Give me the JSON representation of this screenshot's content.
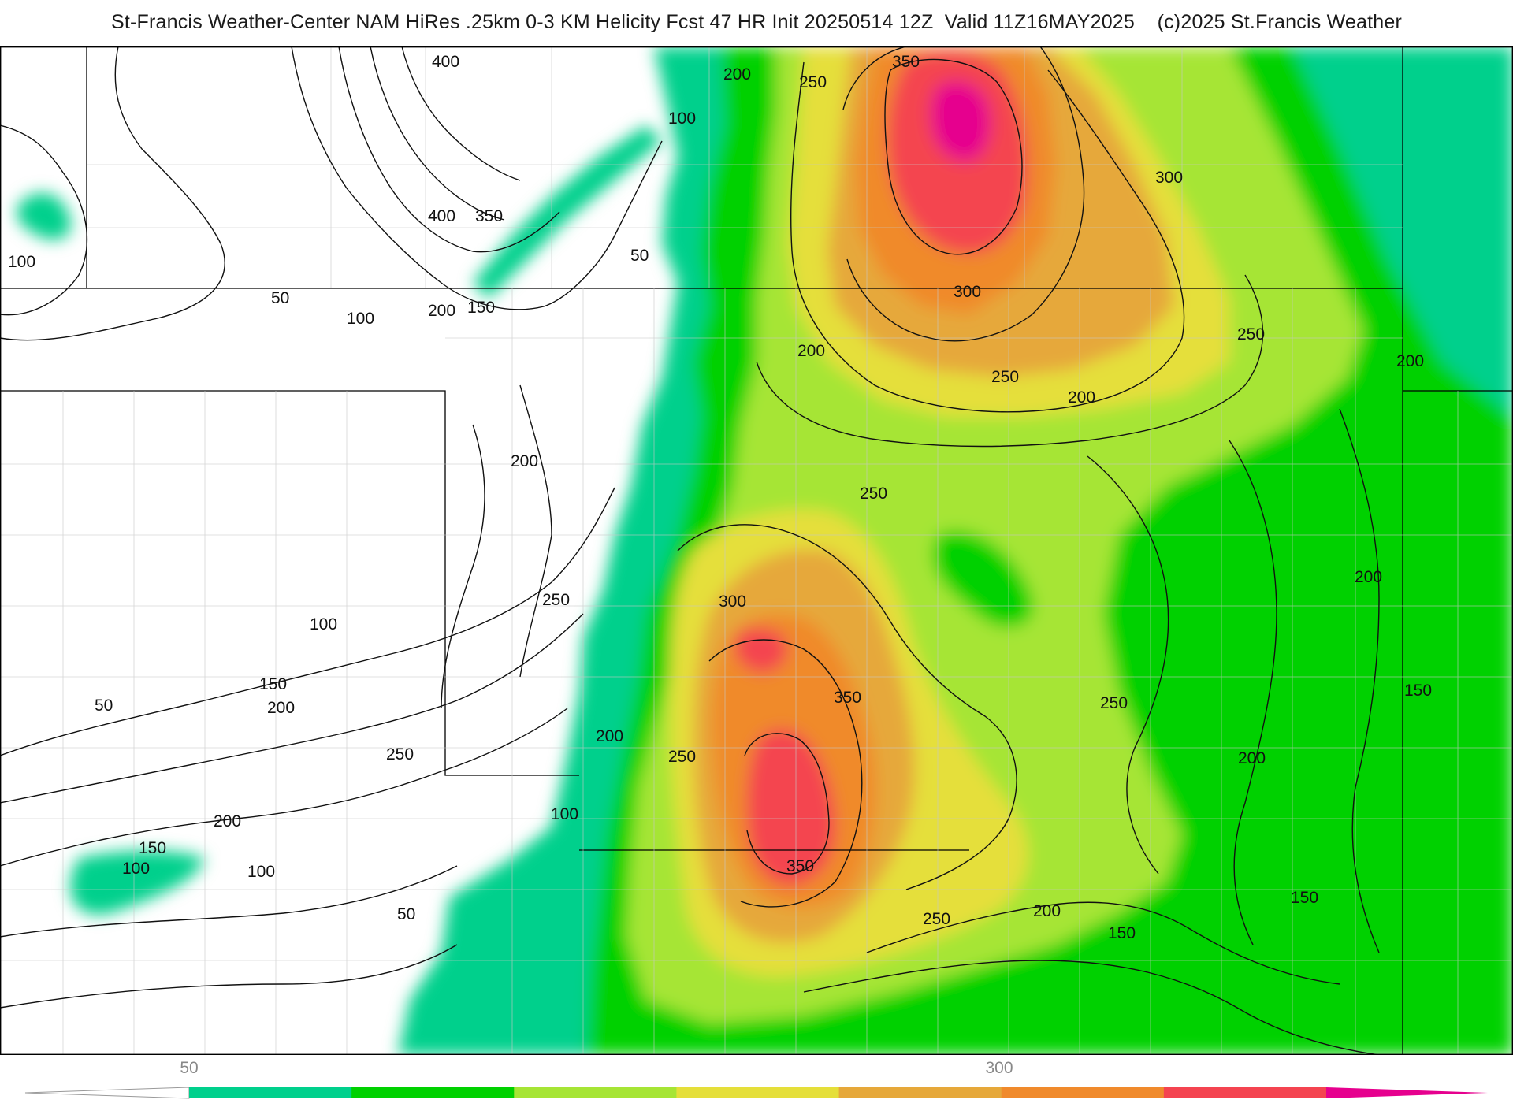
{
  "header": {
    "title": "St-Francis Weather-Center NAM HiRes .25km 0-3 KM Helicity Fcst 47 HR Init 20250514 12Z  Valid 11Z16MAY2025    (c)2025 St.Francis Weather"
  },
  "map": {
    "field": "0-3 KM Helicity",
    "fill_colors": {
      "teal": "#00d08c",
      "green": "#00d100",
      "yellowgreen": "#a6e535",
      "yellow": "#e5df3a",
      "tan": "#e6a83a",
      "orange": "#f08a2c",
      "red": "#f44450",
      "magenta": "#e6008e"
    },
    "contour_labels": [
      "400",
      "200",
      "250",
      "350",
      "100",
      "300",
      "400",
      "350",
      "50",
      "100",
      "50",
      "100",
      "200",
      "150",
      "300",
      "250",
      "200",
      "250",
      "200",
      "200",
      "200",
      "250",
      "250",
      "200",
      "300",
      "100",
      "150",
      "50",
      "200",
      "350",
      "250",
      "250",
      "250",
      "200",
      "150",
      "200",
      "200",
      "100",
      "150",
      "100",
      "350",
      "250",
      "200",
      "150",
      "150",
      "100",
      "50"
    ]
  },
  "colorbar": {
    "colors": [
      "#00d08c",
      "#00d100",
      "#a6e535",
      "#e5df3a",
      "#e6a83a",
      "#f08a2c",
      "#f44450",
      "#e6008e"
    ],
    "labels": [
      {
        "text": "50"
      },
      {
        "text": "300"
      }
    ]
  }
}
